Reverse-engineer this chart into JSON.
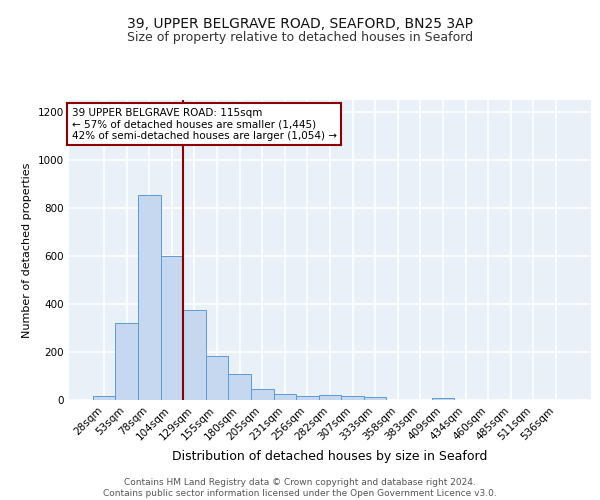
{
  "title1": "39, UPPER BELGRAVE ROAD, SEAFORD, BN25 3AP",
  "title2": "Size of property relative to detached houses in Seaford",
  "xlabel": "Distribution of detached houses by size in Seaford",
  "ylabel": "Number of detached properties",
  "categories": [
    "28sqm",
    "53sqm",
    "78sqm",
    "104sqm",
    "129sqm",
    "155sqm",
    "180sqm",
    "205sqm",
    "231sqm",
    "256sqm",
    "282sqm",
    "307sqm",
    "333sqm",
    "358sqm",
    "383sqm",
    "409sqm",
    "434sqm",
    "460sqm",
    "485sqm",
    "511sqm",
    "536sqm"
  ],
  "values": [
    15,
    320,
    855,
    600,
    375,
    185,
    108,
    47,
    25,
    18,
    22,
    18,
    12,
    0,
    0,
    10,
    0,
    0,
    0,
    0,
    0
  ],
  "bar_color": "#c5d8f0",
  "bar_edge_color": "#5b9bd5",
  "vline_x": 3.5,
  "vline_color": "#8b0000",
  "annotation_text": "39 UPPER BELGRAVE ROAD: 115sqm\n← 57% of detached houses are smaller (1,445)\n42% of semi-detached houses are larger (1,054) →",
  "annotation_box_color": "#ffffff",
  "annotation_box_edge_color": "#8b0000",
  "ylim": [
    0,
    1250
  ],
  "yticks": [
    0,
    200,
    400,
    600,
    800,
    1000,
    1200
  ],
  "footer": "Contains HM Land Registry data © Crown copyright and database right 2024.\nContains public sector information licensed under the Open Government Licence v3.0.",
  "bg_color": "#eaf0f8",
  "grid_color": "#ffffff",
  "title1_fontsize": 10,
  "title2_fontsize": 9,
  "xlabel_fontsize": 9,
  "ylabel_fontsize": 8,
  "tick_fontsize": 7.5,
  "footer_fontsize": 6.5,
  "annot_fontsize": 7.5
}
